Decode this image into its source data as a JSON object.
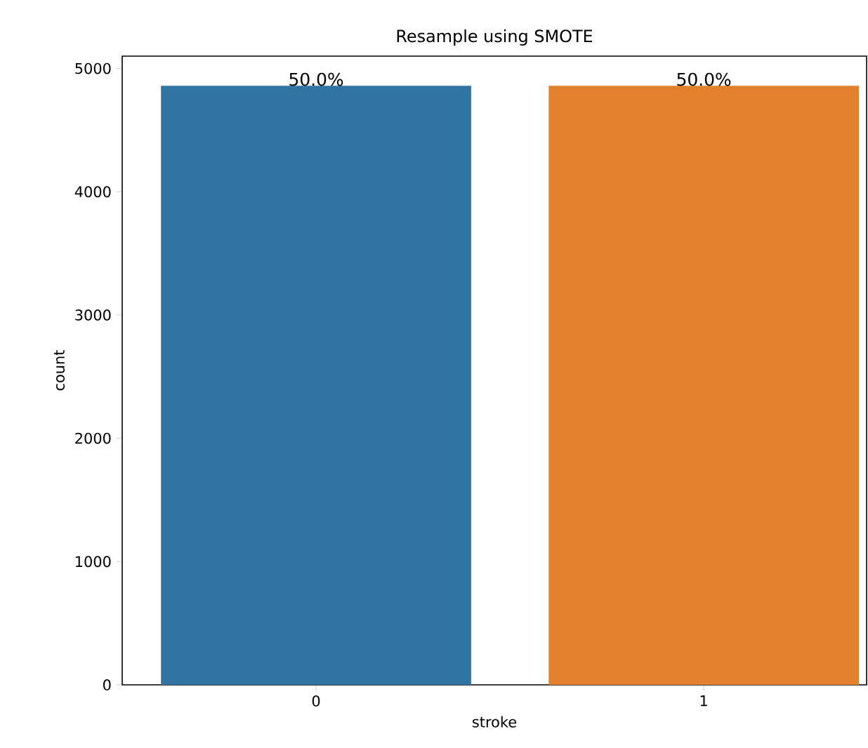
{
  "chart_data": {
    "type": "bar",
    "title": "Resample using SMOTE",
    "xlabel": "stroke",
    "ylabel": "count",
    "categories": [
      "0",
      "1"
    ],
    "series": [
      {
        "values": [
          4860,
          4860
        ],
        "colors": [
          "#3274a1",
          "#e1812c"
        ]
      }
    ],
    "annotations": [
      {
        "text": "50.0%",
        "x": "0",
        "y": 4860
      },
      {
        "text": "50.0%",
        "x": "1",
        "y": 4860
      }
    ],
    "ylim": [
      0,
      5100
    ],
    "yticks": [
      0,
      1000,
      2000,
      3000,
      4000,
      5000
    ],
    "grid": false
  }
}
